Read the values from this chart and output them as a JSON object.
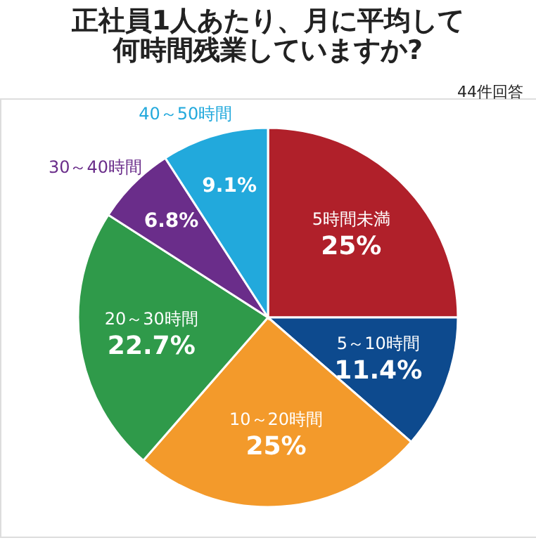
{
  "chart_data": {
    "type": "pie",
    "title": [
      "正社員1人あたり、月に平均して",
      "何時間残業していますか?"
    ],
    "annotations": [
      "44件回答"
    ],
    "categories": [
      "5時間未満",
      "5～10時間",
      "10～20時間",
      "20～30時間",
      "30～40時間",
      "40～50時間"
    ],
    "values": [
      25,
      11.4,
      25,
      22.7,
      6.8,
      9.1
    ],
    "value_labels": [
      "25%",
      "11.4%",
      "25%",
      "22.7%",
      "6.8%",
      "9.1%"
    ],
    "colors": [
      "#b0202a",
      "#0d4a8e",
      "#f39a2b",
      "#2f9a4a",
      "#6a2d8a",
      "#22a9dc"
    ],
    "legend": false
  }
}
